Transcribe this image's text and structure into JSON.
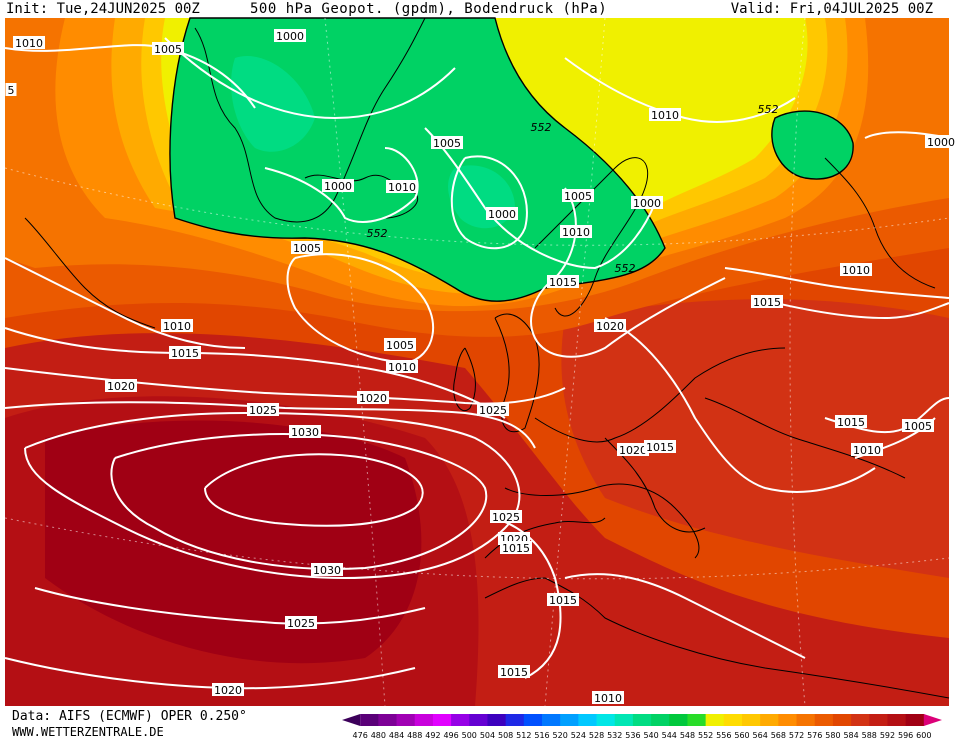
{
  "header": {
    "init": "Init: Tue,24JUN2025 00Z",
    "title": "500 hPa Geopot. (gpdm), Bodendruck (hPa)",
    "valid": "Valid: Fri,04JUL2025 00Z"
  },
  "footer": {
    "data_source": "Data: AIFS (ECMWF) OPER 0.250°",
    "website": "WWW.WETTERZENTRALE.DE"
  },
  "legend": {
    "unit": "gpdm",
    "ticks": [
      "476",
      "480",
      "484",
      "488",
      "492",
      "496",
      "500",
      "504",
      "508",
      "512",
      "516",
      "520",
      "524",
      "528",
      "532",
      "536",
      "540",
      "544",
      "548",
      "552",
      "556",
      "560",
      "564",
      "568",
      "572",
      "576",
      "580",
      "584",
      "588",
      "592",
      "596",
      "600"
    ],
    "colors": [
      "#3c005a",
      "#5a0078",
      "#7d0096",
      "#a000b4",
      "#c800dc",
      "#e100ff",
      "#9600e6",
      "#6400d2",
      "#3c00be",
      "#1e28e6",
      "#0050ff",
      "#0078ff",
      "#00a0ff",
      "#00c8ff",
      "#00e6e6",
      "#00e6b4",
      "#00dc82",
      "#00d264",
      "#00c83c",
      "#28dc28",
      "#f0f000",
      "#ffdc00",
      "#ffc800",
      "#ffaa00",
      "#ff8c00",
      "#f57300",
      "#eb5a00",
      "#e14600",
      "#d23214",
      "#c31e14",
      "#b40f14",
      "#a00014",
      "#dc0078"
    ]
  },
  "map": {
    "contour_labels": [
      {
        "id": "p1010-nw",
        "text": "1010"
      },
      {
        "id": "p1005-n",
        "text": "1005"
      },
      {
        "id": "p1000-gl",
        "text": "1000"
      },
      {
        "id": "p5-edge",
        "text": "5"
      },
      {
        "id": "p1005-ice",
        "text": "1005"
      },
      {
        "id": "p1000-ice",
        "text": "1000"
      },
      {
        "id": "p1010-ice",
        "text": "1010"
      },
      {
        "id": "p1000-c",
        "text": "1000"
      },
      {
        "id": "p1005-nor",
        "text": "1005"
      },
      {
        "id": "p1010-nor",
        "text": "1010"
      },
      {
        "id": "p1000-ne",
        "text": "1000"
      },
      {
        "id": "p1010-ne",
        "text": "1010"
      },
      {
        "id": "p1005-gl2",
        "text": "1005"
      },
      {
        "id": "p1015-nor",
        "text": "1015"
      },
      {
        "id": "p1010-w",
        "text": "1010"
      },
      {
        "id": "p1015-w",
        "text": "1015"
      },
      {
        "id": "p1005-atl",
        "text": "1005"
      },
      {
        "id": "p1010-atl",
        "text": "1010"
      },
      {
        "id": "p1020-nor",
        "text": "1020"
      },
      {
        "id": "p1020-w",
        "text": "1020"
      },
      {
        "id": "p1020-atl",
        "text": "1020"
      },
      {
        "id": "p1025-w",
        "text": "1025"
      },
      {
        "id": "p1025-uk",
        "text": "1025"
      },
      {
        "id": "p1015-eu",
        "text": "1015"
      },
      {
        "id": "p1030-n",
        "text": "1030"
      },
      {
        "id": "p1020-eu",
        "text": "1020"
      },
      {
        "id": "p1015-eu2",
        "text": "1015"
      },
      {
        "id": "p1015-ru",
        "text": "1015"
      },
      {
        "id": "p1010-ru",
        "text": "1010"
      },
      {
        "id": "p1005-ru",
        "text": "1005"
      },
      {
        "id": "p1010-far",
        "text": "1010"
      },
      {
        "id": "p1000-far",
        "text": "1000"
      },
      {
        "id": "p1025-ib",
        "text": "1025"
      },
      {
        "id": "p1020-ib",
        "text": "1020"
      },
      {
        "id": "p1015-ib",
        "text": "1015"
      },
      {
        "id": "p1030-s",
        "text": "1030"
      },
      {
        "id": "p1015-med",
        "text": "1015"
      },
      {
        "id": "p1025-sw",
        "text": "1025"
      },
      {
        "id": "p1015-af",
        "text": "1015"
      },
      {
        "id": "p1020-sw",
        "text": "1020"
      },
      {
        "id": "p1010-af",
        "text": "1010"
      }
    ],
    "geopot_labels": [
      {
        "id": "g552-a",
        "text": "552"
      },
      {
        "id": "g552-b",
        "text": "552"
      },
      {
        "id": "g552-c",
        "text": "552"
      },
      {
        "id": "g552-d",
        "text": "552"
      }
    ]
  }
}
